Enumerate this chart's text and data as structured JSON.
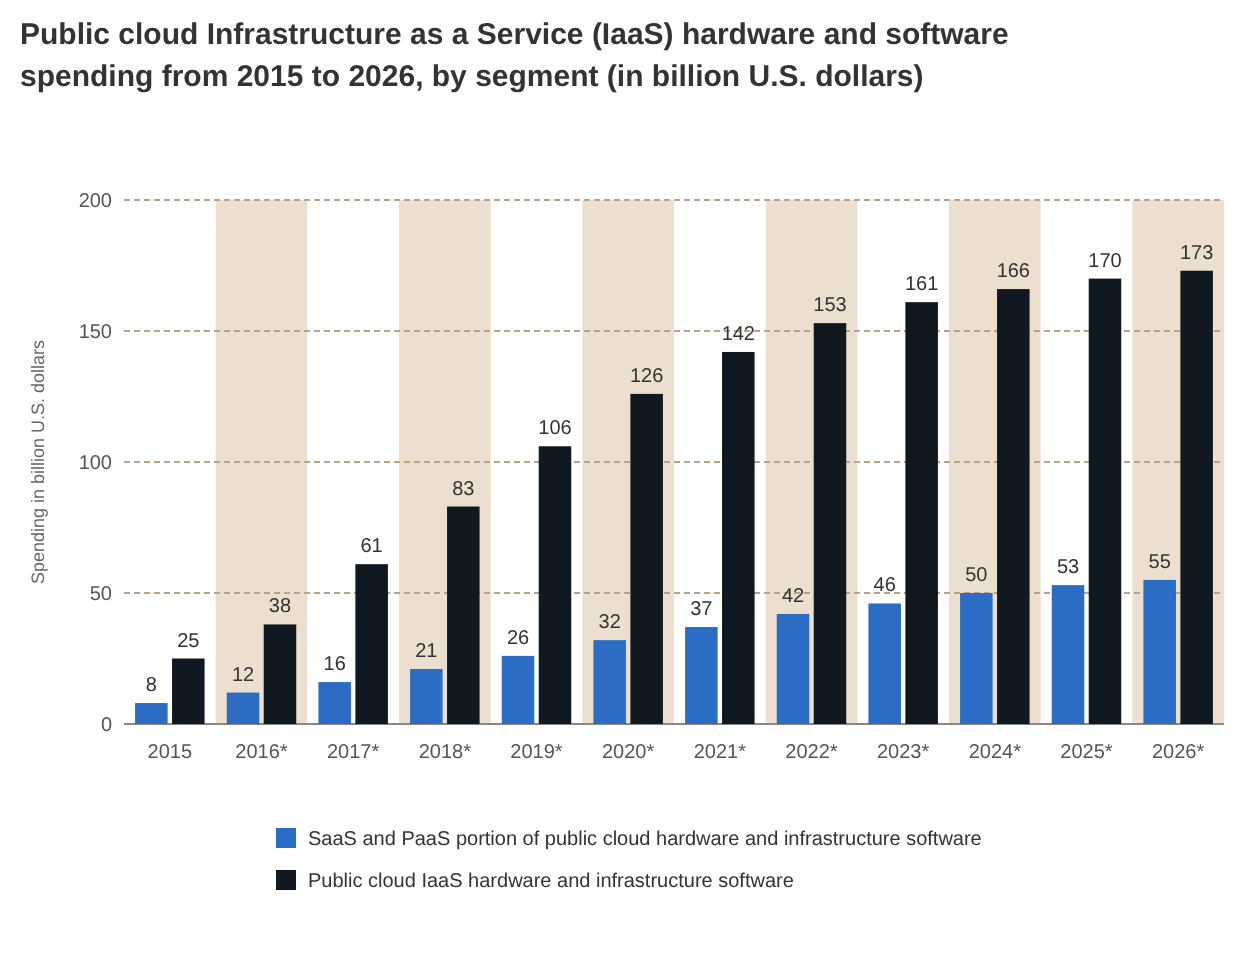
{
  "chart_data": {
    "type": "bar",
    "title": "Public cloud Infrastructure as a Service (IaaS) hardware and software spending from 2015 to 2026, by segment (in billion U.S. dollars)",
    "ylabel": "Spending in billion U.S. dollars",
    "categories": [
      "2015",
      "2016*",
      "2017*",
      "2018*",
      "2019*",
      "2020*",
      "2021*",
      "2022*",
      "2023*",
      "2024*",
      "2025*",
      "2026*"
    ],
    "series": [
      {
        "name": "SaaS and PaaS portion of public cloud hardware and infrastructure software",
        "color": "#2b6cc4",
        "values": [
          8,
          12,
          16,
          21,
          26,
          32,
          37,
          42,
          46,
          50,
          53,
          55
        ]
      },
      {
        "name": "Public cloud IaaS hardware and infrastructure software",
        "color": "#101820",
        "values": [
          25,
          38,
          61,
          83,
          106,
          126,
          142,
          153,
          161,
          166,
          170,
          173
        ]
      }
    ],
    "ylim": [
      0,
      200
    ],
    "yticks": [
      0,
      50,
      100,
      150,
      200
    ],
    "grid": "y",
    "legend": "bottom",
    "data_labels": true,
    "bands": [
      {
        "axis": "x",
        "from": "2016*",
        "to": "2016*",
        "color": "#ecdfd0"
      },
      {
        "axis": "x",
        "from": "2018*",
        "to": "2018*",
        "color": "#ecdfd0"
      },
      {
        "axis": "x",
        "from": "2020*",
        "to": "2020*",
        "color": "#ecdfd0"
      },
      {
        "axis": "x",
        "from": "2022*",
        "to": "2022*",
        "color": "#ecdfd0"
      },
      {
        "axis": "x",
        "from": "2024*",
        "to": "2024*",
        "color": "#ecdfd0"
      },
      {
        "axis": "x",
        "from": "2026*",
        "to": "2026*",
        "color": "#ecdfd0"
      }
    ]
  }
}
